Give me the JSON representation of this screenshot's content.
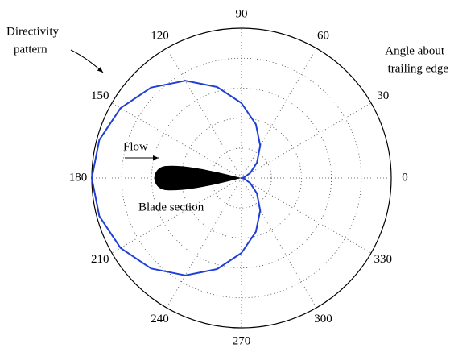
{
  "chart_data": {
    "type": "polar",
    "theta": [
      0,
      15,
      30,
      45,
      60,
      75,
      90,
      105,
      120,
      135,
      150,
      165,
      180,
      195,
      210,
      225,
      240,
      255,
      270,
      285,
      300,
      315,
      330,
      345,
      360
    ],
    "series": [
      {
        "color": "#1f3fd6",
        "values": [
          0,
          0.017,
          0.067,
          0.146,
          0.25,
          0.371,
          0.5,
          0.629,
          0.75,
          0.854,
          0.933,
          0.983,
          1,
          0.983,
          0.933,
          0.854,
          0.75,
          0.629,
          0.5,
          0.371,
          0.25,
          0.146,
          0.067,
          0.017,
          0
        ]
      }
    ],
    "rlim": [
      0,
      1
    ],
    "rgrid": [
      0.2,
      0.4,
      0.6,
      0.8
    ],
    "thetaticks": [
      0,
      30,
      60,
      90,
      120,
      150,
      180,
      210,
      240,
      270,
      300,
      330
    ],
    "annotations": {
      "directivity": [
        "Directivity",
        "pattern"
      ],
      "angle": [
        "Angle about",
        "trailing edge"
      ],
      "flow": "Flow",
      "blade": "Blade section"
    }
  }
}
